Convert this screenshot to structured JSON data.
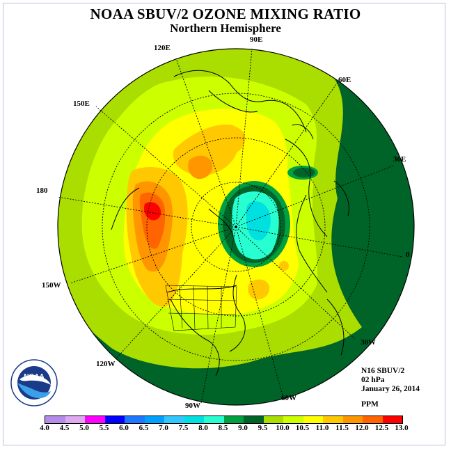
{
  "title": "NOAA SBUV/2 OZONE MIXING RATIO",
  "subtitle": "Northern Hemisphere",
  "longitude_labels": [
    "90E",
    "60E",
    "30E",
    "0",
    "30W",
    "60W",
    "90W",
    "120W",
    "150W",
    "180",
    "150E",
    "120E"
  ],
  "info": {
    "satellite": "N16 SBUV/2",
    "pressure": "02 hPa",
    "date": "January 26, 2014",
    "units": "PPM"
  },
  "logo": {
    "text": "NOAA",
    "ring_text": "NATIONAL OCEANIC AND ATMOSPHERIC ADMINISTRATION · U.S. DEPARTMENT OF COMMERCE"
  },
  "colorbar": {
    "labels": [
      "4.0",
      "4.5",
      "5.0",
      "5.5",
      "6.0",
      "6.5",
      "7.0",
      "7.5",
      "8.0",
      "8.5",
      "9.0",
      "9.5",
      "10.0",
      "10.5",
      "11.0",
      "11.5",
      "12.0",
      "12.5",
      "13.0"
    ],
    "colors": [
      "#b48ce8",
      "#e0a8f0",
      "#ff00ff",
      "#0000ff",
      "#1e78ff",
      "#00a0ff",
      "#32c8ff",
      "#00e0e0",
      "#28ffd0",
      "#00a040",
      "#006428",
      "#aadd00",
      "#ccff00",
      "#ffff00",
      "#ffc800",
      "#ff9600",
      "#ff6400",
      "#ff0000",
      "#8b5a3c"
    ]
  },
  "map_colors": {
    "background": "#006428",
    "band_85": "#00a040",
    "band_95": "#aadd00",
    "band_100": "#ccff00",
    "band_105": "#ffff00",
    "band_110": "#ffc800",
    "band_115": "#ff9600",
    "band_120": "#ff6400",
    "band_125": "#ff0000",
    "polar_low_80": "#28ffd0",
    "polar_low_75": "#00e0e0"
  }
}
